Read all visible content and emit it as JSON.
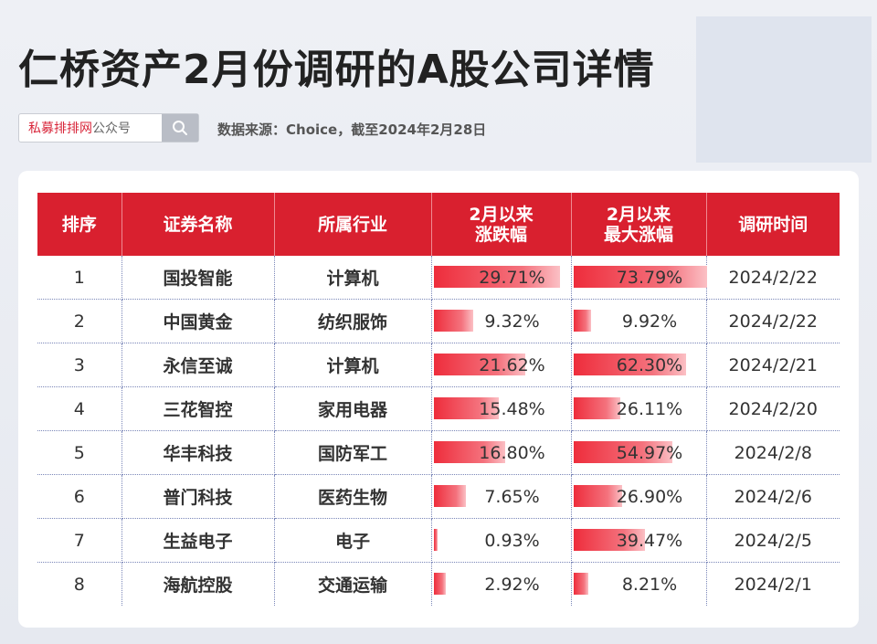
{
  "title": "仁桥资产2月份调研的A股公司详情",
  "search": {
    "brand_red": "私募排排网",
    "brand_rest": "公众号"
  },
  "source": "数据来源：Choice，截至2024年2月28日",
  "table": {
    "headers": {
      "rank": "排序",
      "name": "证券名称",
      "industry": "所属行业",
      "change_line1": "2月以来",
      "change_line2": "涨跌幅",
      "max_line1": "2月以来",
      "max_line2": "最大涨幅",
      "date": "调研时间"
    },
    "rows": [
      {
        "rank": "1",
        "name": "国投智能",
        "industry": "计算机",
        "change": "29.71%",
        "change_value": 29.71,
        "max": "73.79%",
        "max_value": 73.79,
        "date": "2024/2/22"
      },
      {
        "rank": "2",
        "name": "中国黄金",
        "industry": "纺织服饰",
        "change": "9.32%",
        "change_value": 9.32,
        "max": "9.92%",
        "max_value": 9.92,
        "date": "2024/2/22"
      },
      {
        "rank": "3",
        "name": "永信至诚",
        "industry": "计算机",
        "change": "21.62%",
        "change_value": 21.62,
        "max": "62.30%",
        "max_value": 62.3,
        "date": "2024/2/21"
      },
      {
        "rank": "4",
        "name": "三花智控",
        "industry": "家用电器",
        "change": "15.48%",
        "change_value": 15.48,
        "max": "26.11%",
        "max_value": 26.11,
        "date": "2024/2/20"
      },
      {
        "rank": "5",
        "name": "华丰科技",
        "industry": "国防军工",
        "change": "16.80%",
        "change_value": 16.8,
        "max": "54.97%",
        "max_value": 54.97,
        "date": "2024/2/8"
      },
      {
        "rank": "6",
        "name": "普门科技",
        "industry": "医药生物",
        "change": "7.65%",
        "change_value": 7.65,
        "max": "26.90%",
        "max_value": 26.9,
        "date": "2024/2/6"
      },
      {
        "rank": "7",
        "name": "生益电子",
        "industry": "电子",
        "change": "0.93%",
        "change_value": 0.93,
        "max": "39.47%",
        "max_value": 39.47,
        "date": "2024/2/5"
      },
      {
        "rank": "8",
        "name": "海航控股",
        "industry": "交通运输",
        "change": "2.92%",
        "change_value": 2.92,
        "max": "8.21%",
        "max_value": 8.21,
        "date": "2024/2/1"
      }
    ]
  },
  "colors": {
    "header_red": "#d9202f",
    "brand_red": "#d8263a"
  }
}
